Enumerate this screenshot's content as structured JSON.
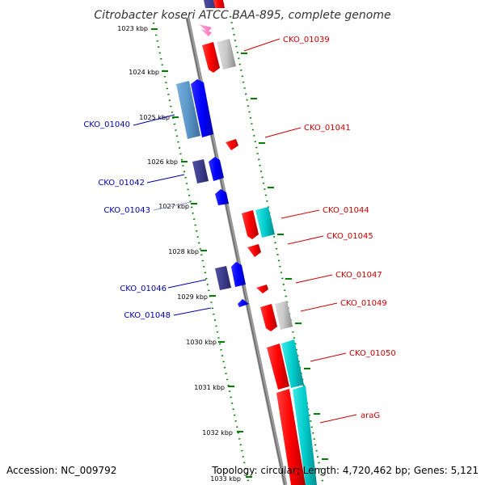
{
  "title": "Citrobacter koseri ATCC BAA-895, complete genome",
  "footer": {
    "accession": "Accession: NC_009792",
    "summary": "Topology: circular; Length: 4,720,462 bp; Genes: 5,121"
  },
  "colors": {
    "plus_label": "#cc0000",
    "minus_label": "#0000aa",
    "plus_cds": "#ff0000",
    "plus_cds_dark": "#b40000",
    "plus_rna": "#00cccc",
    "plus_rna_dark": "#008c8c",
    "plus_pseudo": "#c8c8c8",
    "plus_pseudo_dark": "#8c8c8c",
    "minus_cds": "#0000ff",
    "minus_cds_dark": "#0000b4",
    "minus_other": "#3c3c8c",
    "minus_light": "#5a96c8",
    "tick": "#008000",
    "backbone": "#999999"
  },
  "kbp_ticks": [
    "1023 kbp",
    "1024 kbp",
    "1025 kbp",
    "1026 kbp",
    "1027 kbp",
    "1028 kbp",
    "1029 kbp",
    "1030 kbp",
    "1031 kbp",
    "1032 kbp",
    "1033 kbp"
  ],
  "gene_labels": {
    "plus": [
      "CKO_01039",
      "CKO_01041",
      "CKO_01044",
      "CKO_01045",
      "CKO_01047",
      "CKO_01049",
      "CKO_01050",
      "araG"
    ],
    "minus": [
      "CKO_01040",
      "CKO_01042",
      "CKO_01043",
      "CKO_01046",
      "CKO_01048"
    ]
  }
}
